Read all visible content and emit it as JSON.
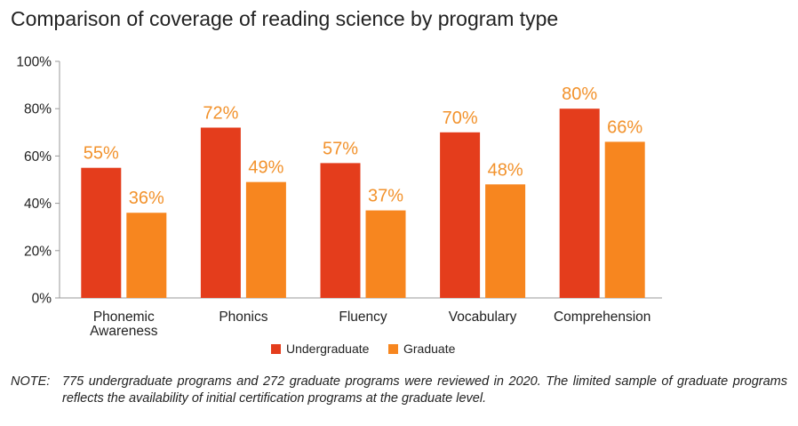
{
  "chart_data": {
    "type": "bar",
    "title": "Comparison of coverage of reading science by program type",
    "categories": [
      "Phonemic\nAwareness",
      "Phonics",
      "Fluency",
      "Vocabulary",
      "Comprehension"
    ],
    "series": [
      {
        "name": "Undergraduate",
        "values": [
          55,
          72,
          57,
          70,
          80
        ],
        "labels": [
          "55%",
          "72%",
          "57%",
          "70%",
          "80%"
        ]
      },
      {
        "name": "Graduate",
        "values": [
          36,
          49,
          37,
          48,
          66
        ],
        "labels": [
          "36%",
          "49%",
          "37%",
          "48%",
          "66%"
        ]
      }
    ],
    "ylim": [
      0,
      100
    ],
    "yticks": [
      0,
      20,
      40,
      60,
      80,
      100
    ],
    "ytick_labels": [
      "0%",
      "20%",
      "40%",
      "60%",
      "80%",
      "100%"
    ],
    "grid": false,
    "legend_position": "bottom-center",
    "colors": {
      "Undergraduate": "#e43d1c",
      "Graduate": "#f7861f",
      "label": "#f2922c"
    }
  },
  "note": {
    "label": "NOTE:",
    "text": "775 undergraduate programs and 272 graduate programs were reviewed in 2020. The limited sample of graduate programs reflects the availability of initial certification programs at the graduate level."
  }
}
